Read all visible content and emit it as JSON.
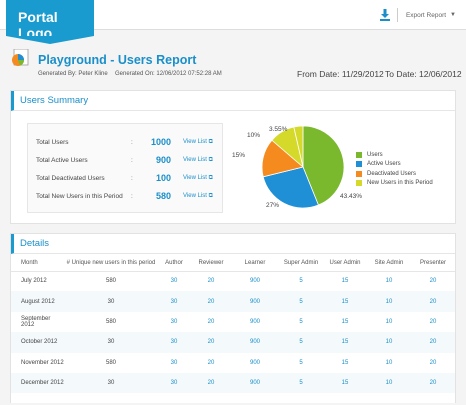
{
  "header": {
    "logo": "Portal Logo",
    "export_label": "Export Report"
  },
  "report": {
    "title": "Playground - Users Report",
    "generated_by": "Generated By: Peter Kline",
    "generated_on": "Generated On: 12/06/2012 07:52:28 AM",
    "from_date": "From Date: 11/29/2012",
    "to_date": "To Date: 12/06/2012"
  },
  "summary": {
    "heading": "Users Summary",
    "view_list": "View List",
    "stats": [
      {
        "label": "Total Users",
        "value": "1000"
      },
      {
        "label": "Total Active Users",
        "value": "900"
      },
      {
        "label": "Total Deactivated Users",
        "value": "100"
      },
      {
        "label": "Total New Users in this Period",
        "value": "580"
      }
    ]
  },
  "chart_data": {
    "type": "pie",
    "slices": [
      {
        "name": "Users",
        "value": 43.43,
        "label": "43.43%",
        "color": "#7ab82e"
      },
      {
        "name": "Active Users",
        "value": 27,
        "label": "27%",
        "color": "#1f8fd6"
      },
      {
        "name": "Deactivated Users",
        "value": 15,
        "label": "15%",
        "color": "#f58a1f"
      },
      {
        "name": "New Users in this Period",
        "value": 10,
        "label": "10%",
        "color": "#d4d92a"
      },
      {
        "name": "",
        "value": 3.55,
        "label": "3.55%",
        "color": "#d4d92a"
      }
    ],
    "legend": [
      "Users",
      "Active Users",
      "Deactivated Users",
      "New Users in this Period"
    ],
    "legend_placement": "right"
  },
  "details": {
    "heading": "Details",
    "columns": [
      "Month",
      "# Unique new users in this period",
      "Author",
      "Reviewer",
      "Learner",
      "Super Admin",
      "User Admin",
      "Site Admin",
      "Presenter"
    ],
    "rows": [
      [
        "July 2012",
        "580",
        "30",
        "20",
        "900",
        "5",
        "15",
        "10",
        "20"
      ],
      [
        "August 2012",
        "30",
        "30",
        "20",
        "900",
        "5",
        "15",
        "10",
        "20"
      ],
      [
        "September 2012",
        "580",
        "30",
        "20",
        "900",
        "5",
        "15",
        "10",
        "20"
      ],
      [
        "October 2012",
        "30",
        "30",
        "20",
        "900",
        "5",
        "15",
        "10",
        "20"
      ],
      [
        "November 2012",
        "580",
        "30",
        "20",
        "900",
        "5",
        "15",
        "10",
        "20"
      ],
      [
        "December 2012",
        "30",
        "30",
        "20",
        "900",
        "5",
        "15",
        "10",
        "20"
      ]
    ]
  }
}
